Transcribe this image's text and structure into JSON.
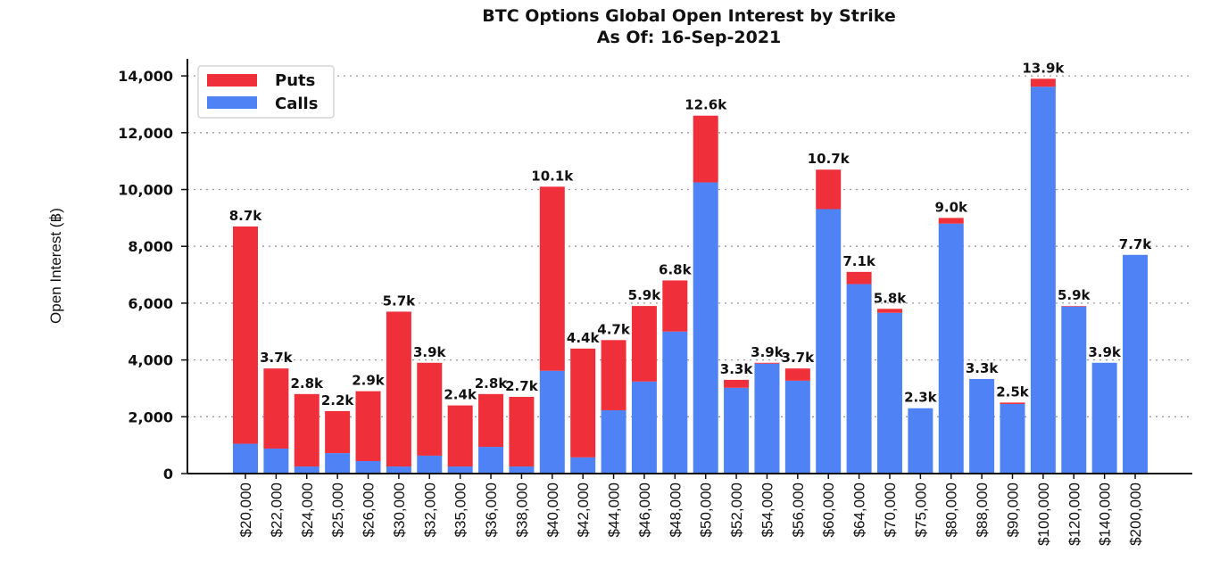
{
  "chart_data": {
    "type": "bar",
    "stacked": true,
    "title": "BTC Options Global Open Interest by Strike",
    "subtitle": "As Of: 16-Sep-2021",
    "xlabel": "",
    "ylabel": "Open Interest (฿)",
    "ylim": [
      0,
      14600
    ],
    "yticks": [
      0,
      2000,
      4000,
      6000,
      8000,
      10000,
      12000,
      14000
    ],
    "ytick_labels": [
      "0",
      "2,000",
      "4,000",
      "6,000",
      "8,000",
      "10,000",
      "12,000",
      "14,000"
    ],
    "grid": "horizontal dotted",
    "legend_position": "top-left",
    "categories": [
      "$20,000",
      "$22,000",
      "$24,000",
      "$25,000",
      "$26,000",
      "$30,000",
      "$32,000",
      "$35,000",
      "$36,000",
      "$38,000",
      "$40,000",
      "$42,000",
      "$44,000",
      "$46,000",
      "$48,000",
      "$50,000",
      "$52,000",
      "$54,000",
      "$56,000",
      "$60,000",
      "$64,000",
      "$70,000",
      "$75,000",
      "$80,000",
      "$88,000",
      "$90,000",
      "$100,000",
      "$120,000",
      "$140,000",
      "$200,000"
    ],
    "series": [
      {
        "name": "Calls",
        "color": "#4F83F5",
        "values": [
          1050,
          880,
          250,
          720,
          440,
          250,
          630,
          250,
          940,
          250,
          3620,
          570,
          2230,
          3240,
          5000,
          10250,
          3020,
          3870,
          3270,
          9310,
          6670,
          5660,
          2300,
          8800,
          3330,
          2450,
          13620,
          5880,
          3900,
          7700
        ]
      },
      {
        "name": "Puts",
        "color": "#EF303B",
        "values": [
          7650,
          2820,
          2550,
          1480,
          2460,
          5450,
          3270,
          2150,
          1860,
          2450,
          6480,
          3830,
          2470,
          2660,
          1800,
          2350,
          280,
          30,
          430,
          1390,
          430,
          140,
          0,
          200,
          0,
          50,
          280,
          20,
          0,
          0
        ]
      }
    ],
    "total_labels": [
      "8.7k",
      "3.7k",
      "2.8k",
      "2.2k",
      "2.9k",
      "5.7k",
      "3.9k",
      "2.4k",
      "2.8k",
      "2.7k",
      "10.1k",
      "4.4k",
      "4.7k",
      "5.9k",
      "6.8k",
      "12.6k",
      "3.3k",
      "3.9k",
      "3.7k",
      "10.7k",
      "7.1k",
      "5.8k",
      "2.3k",
      "9.0k",
      "3.3k",
      "2.5k",
      "13.9k",
      "5.9k",
      "3.9k",
      "7.7k"
    ]
  }
}
